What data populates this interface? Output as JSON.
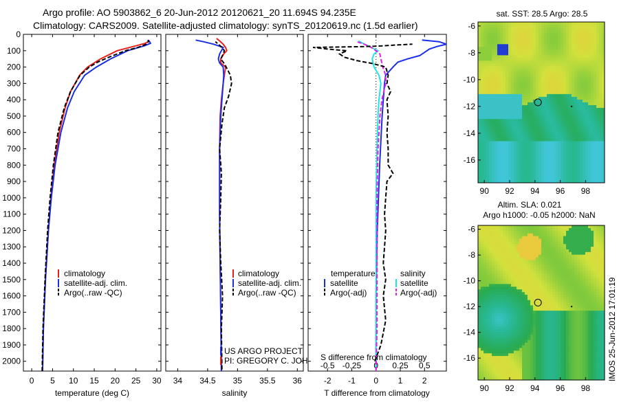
{
  "header": {
    "line1": "Argo profile: AO 5903862_6 20-Jun-2012 20120621_20 11.694S 94.235E",
    "line2": "Climatology: CARS2009. Satellite-adjusted climatology: synTS_20120619.nc (1.5d earlier)"
  },
  "colors": {
    "climatology": "#e8201c",
    "satellite": "#1a2ee6",
    "argo": "#000000",
    "sat_salinity": "#1ee6e6",
    "argo_salinity": "#e61ee6"
  },
  "depth_ticks": [
    "0",
    "100",
    "200",
    "300",
    "400",
    "500",
    "600",
    "700",
    "800",
    "900",
    "1000",
    "1100",
    "1200",
    "1300",
    "1400",
    "1500",
    "1600",
    "1700",
    "1800",
    "1900",
    "2000"
  ],
  "chart_data": [
    {
      "type": "line",
      "xlabel": "temperature (deg C)",
      "xlim": [
        -2,
        31
      ],
      "ylim": [
        2060,
        0
      ],
      "xticks": [
        "0",
        "5",
        "10",
        "15",
        "20",
        "25",
        "30"
      ],
      "legend": [
        "climatology",
        "satellite-adj. clim.",
        "Argo(..raw -QC)"
      ],
      "series": [
        {
          "name": "climatology",
          "depth": [
            2060,
            1800,
            1500,
            1200,
            1000,
            800,
            600,
            450,
            350,
            250,
            200,
            150,
            100,
            70,
            55,
            45,
            35
          ],
          "values": [
            2.6,
            2.8,
            3.3,
            4.0,
            4.6,
            5.4,
            6.6,
            8.0,
            9.3,
            11.5,
            13.4,
            16.5,
            20.5,
            25.0,
            27.2,
            27.9,
            28.2
          ]
        },
        {
          "name": "satellite-adj. clim.",
          "depth": [
            2060,
            1800,
            1500,
            1200,
            1000,
            800,
            600,
            450,
            350,
            250,
            200,
            150,
            100,
            70,
            55,
            45,
            35
          ],
          "values": [
            2.6,
            2.8,
            3.3,
            4.0,
            4.7,
            5.6,
            7.0,
            8.6,
            10.2,
            12.7,
            15.5,
            18.9,
            23.0,
            27.0,
            28.5,
            28.3,
            27.8
          ]
        },
        {
          "name": "Argo(..raw -QC)",
          "depth": [
            2060,
            1800,
            1500,
            1200,
            1000,
            800,
            600,
            450,
            350,
            250,
            200,
            170,
            140,
            120,
            100,
            80,
            60,
            45,
            35
          ],
          "values": [
            2.5,
            2.7,
            3.2,
            3.8,
            4.4,
            5.2,
            6.3,
            7.8,
            9.3,
            11.6,
            13.8,
            15.8,
            18.5,
            20.5,
            22.5,
            25.5,
            27.5,
            28.0,
            28.0
          ]
        }
      ]
    },
    {
      "type": "line",
      "xlabel": "salinity",
      "xlim": [
        33.8,
        36.1
      ],
      "ylim": [
        2060,
        0
      ],
      "xticks": [
        "34",
        "34.5",
        "35",
        "35.5",
        "36"
      ],
      "legend": [
        "climatology",
        "satellite-adj. clim.",
        "Argo(..raw -QC)"
      ],
      "annotation": [
        "US ARGO PROJECT",
        "PI: GREGORY C. JOHNSON"
      ],
      "series": [
        {
          "name": "climatology",
          "depth": [
            2060,
            1700,
            1400,
            1100,
            900,
            700,
            500,
            400,
            300,
            250,
            200,
            175,
            150,
            120,
            100,
            80,
            60,
            40,
            25
          ],
          "values": [
            34.73,
            34.72,
            34.71,
            34.7,
            34.7,
            34.7,
            34.71,
            34.73,
            34.76,
            34.78,
            34.8,
            34.72,
            34.72,
            34.77,
            34.82,
            34.8,
            34.76,
            34.7,
            34.65
          ]
        },
        {
          "name": "satellite-adj. clim.",
          "depth": [
            2060,
            1700,
            1400,
            1100,
            900,
            700,
            500,
            400,
            300,
            250,
            200,
            175,
            150,
            120,
            100,
            80,
            60,
            45,
            35
          ],
          "values": [
            34.73,
            34.72,
            34.71,
            34.7,
            34.7,
            34.7,
            34.72,
            34.74,
            34.76,
            34.77,
            34.76,
            34.7,
            34.68,
            34.7,
            34.73,
            34.76,
            34.6,
            34.43,
            34.3
          ]
        },
        {
          "name": "Argo(..raw -QC)",
          "depth": [
            2050,
            1800,
            1600,
            1400,
            1200,
            1000,
            850,
            700,
            550,
            450,
            380,
            300,
            250,
            220,
            180,
            150,
            120,
            100,
            80,
            60,
            45
          ],
          "values": [
            34.74,
            34.73,
            34.75,
            34.72,
            34.7,
            34.72,
            34.73,
            34.7,
            34.74,
            34.78,
            34.85,
            34.9,
            34.88,
            34.84,
            34.78,
            34.72,
            34.76,
            34.78,
            34.74,
            34.68,
            34.63
          ]
        }
      ]
    },
    {
      "type": "line",
      "xlabel": "T difference from climatology",
      "xlabel_top": "S difference from climatology",
      "xlim": [
        -2.8,
        2.9
      ],
      "ylim": [
        2060,
        0
      ],
      "xticks": [
        "-2",
        "-1",
        "0",
        "1",
        "2"
      ],
      "xticks_top": [
        "-0.5",
        "-0.25",
        "0",
        "0.25",
        "0.5"
      ],
      "legend_temperature_title": "temperature",
      "legend_salinity_title": "salinity",
      "legend_temperature": [
        "satellite",
        "Argo(-adj)"
      ],
      "legend_salinity": [
        "satellite",
        "Argo(-adj)"
      ],
      "series": [
        {
          "name": "satellite",
          "depth": [
            2060,
            1600,
            1200,
            800,
            500,
            400,
            300,
            250,
            200,
            170,
            150,
            130,
            110,
            90,
            75,
            60,
            45,
            35
          ],
          "values": [
            0.0,
            0.0,
            0.05,
            0.15,
            0.25,
            0.3,
            0.35,
            0.4,
            0.7,
            0.9,
            1.3,
            1.8,
            2.0,
            2.2,
            2.5,
            2.9,
            2.6,
            1.9
          ]
        },
        {
          "name": "Argo(-adj)",
          "depth": [
            2000,
            1900,
            1750,
            1600,
            1500,
            1400,
            1300,
            1200,
            1100,
            1000,
            900,
            850,
            800,
            700,
            600,
            500,
            400,
            350,
            300,
            250,
            200,
            180,
            160,
            140,
            120,
            100,
            90,
            80,
            75,
            70,
            65,
            60
          ],
          "values": [
            -0.05,
            0.2,
            0.4,
            0.3,
            0.4,
            0.3,
            0.35,
            0.4,
            0.35,
            0.4,
            0.45,
            0.7,
            0.5,
            0.5,
            0.45,
            0.5,
            0.45,
            0.6,
            0.45,
            0.5,
            0.4,
            -0.1,
            -0.8,
            -1.3,
            -1.5,
            -1.2,
            -2.0,
            -2.6,
            -0.5,
            0.3,
            0.8,
            1.5
          ]
        },
        {
          "name": "satellite (salinity)",
          "depth": [
            2060,
            1800,
            1400,
            1000,
            700,
            500,
            400,
            300,
            250,
            200,
            150,
            120,
            100,
            80,
            60,
            40
          ],
          "values": [
            0.0,
            0.0,
            0.0,
            0.0,
            0.01,
            0.02,
            0.03,
            0.05,
            0.03,
            -0.02,
            -0.04,
            -0.02,
            0.02,
            -0.05,
            -0.12,
            -0.18
          ]
        },
        {
          "name": "Argo(-adj) (salinity)",
          "depth": [
            2060,
            1800,
            1400,
            1000,
            700,
            500,
            400,
            350,
            300,
            250,
            200,
            150,
            120,
            100,
            80,
            60,
            45
          ],
          "values": [
            0.0,
            0.01,
            0.01,
            0.01,
            0.02,
            0.04,
            0.06,
            0.08,
            0.1,
            0.1,
            0.07,
            0.05,
            0.04,
            0.0,
            -0.05,
            -0.12,
            -0.2
          ]
        }
      ]
    },
    {
      "type": "heatmap",
      "title": "sat. SST: 28.5  Argo: 28.5",
      "xlim": [
        89.5,
        99.5
      ],
      "ylim": [
        -17.7,
        -5.7
      ],
      "xticks": [
        "90",
        "92",
        "94",
        "96",
        "98"
      ],
      "yticks": [
        "-6",
        "-8",
        "-10",
        "-12",
        "-14",
        "-16"
      ],
      "argo_position": {
        "lon": 94.235,
        "lat": -11.694
      }
    },
    {
      "type": "heatmap",
      "title_line1": "Altim. SLA: 0.021",
      "title_line2": "Argo h1000: -0.05 h2000: NaN",
      "xlim": [
        89.5,
        99.5
      ],
      "ylim": [
        -17.7,
        -5.7
      ],
      "xticks": [
        "90",
        "92",
        "94",
        "96",
        "98"
      ],
      "yticks": [
        "-6",
        "-8",
        "-10",
        "-12",
        "-14",
        "-16"
      ],
      "argo_position": {
        "lon": 94.235,
        "lat": -11.694
      }
    }
  ],
  "footer": {
    "stamp": "IMOS 25-Jun-2012 17:01:19"
  }
}
